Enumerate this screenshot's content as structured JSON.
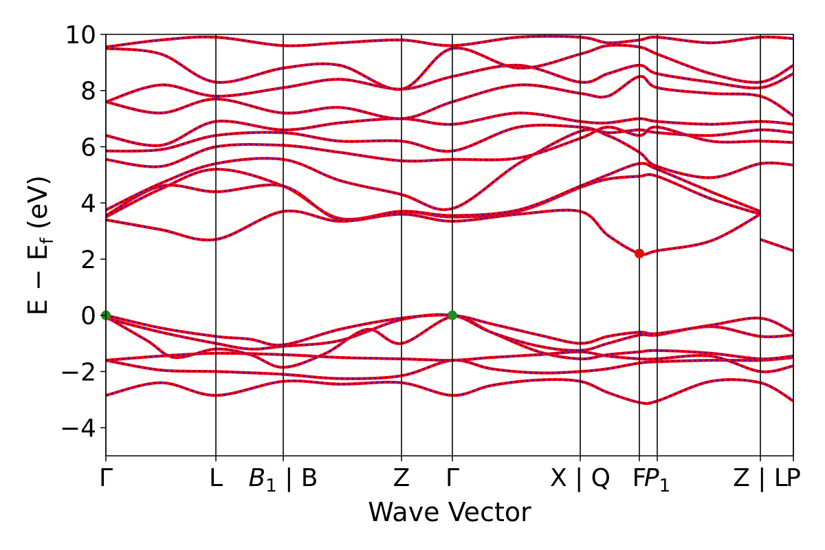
{
  "chart_data": {
    "type": "line",
    "title": "",
    "xlabel": "Wave Vector",
    "ylabel": "E − E_f (eV)",
    "ylabel_parts": {
      "main": "E − E",
      "sub": "f",
      "unit": " (eV)"
    },
    "xlim": [
      0,
      10.0
    ],
    "ylim": [
      -5,
      10
    ],
    "y_ticks": [
      -4,
      -2,
      0,
      2,
      4,
      6,
      8,
      10
    ],
    "y_tick_labels": [
      "−4",
      "−2",
      "0",
      "2",
      "4",
      "6",
      "8",
      "10"
    ],
    "grid": false,
    "legend": "none",
    "kpoints": [
      {
        "x": 0.0,
        "label": "Γ",
        "sub": ""
      },
      {
        "x": 1.6,
        "label": "L",
        "sub": ""
      },
      {
        "x": 2.58,
        "label": "B",
        "sub": "1",
        "italic": true,
        "suffix": " | B"
      },
      {
        "x": 4.3,
        "label": "Z",
        "sub": ""
      },
      {
        "x": 5.04,
        "label": "Γ",
        "sub": ""
      },
      {
        "x": 6.9,
        "label": "X | Q",
        "sub": ""
      },
      {
        "x": 7.76,
        "label": "F",
        "sub": ""
      },
      {
        "x": 8.02,
        "label": "P",
        "sub": "1",
        "italic": true
      },
      {
        "x": 9.52,
        "label": "Z | L",
        "sub": ""
      },
      {
        "x": 10.0,
        "label": "P",
        "sub": ""
      }
    ],
    "markers": [
      {
        "x": 0.0,
        "y": 0.0,
        "color": "#228B22"
      },
      {
        "x": 5.04,
        "y": 0.0,
        "color": "#228B22"
      },
      {
        "x": 7.76,
        "y": 2.2,
        "color": "#e01010"
      }
    ],
    "style": {
      "line_color": "#ff0000",
      "dash_color": "#0000ff",
      "vline_color": "#000000"
    },
    "series": [
      {
        "x": [
          0,
          0.8,
          1.6,
          2.58,
          3.4,
          4.3,
          5.04,
          5.6,
          6.3,
          6.9,
          7.3,
          7.76,
          8.02,
          8.8,
          9.52,
          10.0
        ],
        "y": [
          -2.85,
          -2.4,
          -2.85,
          -2.35,
          -2.45,
          -2.4,
          -2.85,
          -2.5,
          -2.3,
          -2.35,
          -2.75,
          -3.1,
          -3.05,
          -2.35,
          -2.4,
          -3.05
        ]
      },
      {
        "x": [
          0,
          0.8,
          1.6,
          2.58,
          3.4,
          4.3,
          5.04,
          5.6,
          6.3,
          6.9,
          7.3,
          7.76,
          8.02,
          8.8,
          9.52,
          10.0
        ],
        "y": [
          -1.6,
          -1.95,
          -2.0,
          -2.1,
          -2.25,
          -2.15,
          -1.6,
          -1.9,
          -2.05,
          -2.0,
          -1.9,
          -1.7,
          -1.65,
          -1.6,
          -1.6,
          -1.5
        ]
      },
      {
        "x": [
          0,
          0.8,
          1.6,
          2.58,
          3.4,
          4.3,
          5.04,
          5.6,
          6.3,
          6.9,
          7.3,
          7.76,
          8.02,
          8.8,
          9.52,
          10.0
        ],
        "y": [
          -1.6,
          -1.45,
          -1.35,
          -1.4,
          -1.5,
          -1.55,
          -1.6,
          -1.5,
          -1.4,
          -1.3,
          -1.45,
          -1.55,
          -1.55,
          -1.45,
          -2.0,
          -1.8
        ]
      },
      {
        "x": [
          0,
          0.6,
          1.0,
          1.6,
          2.1,
          2.58,
          3.2,
          3.8,
          4.3,
          5.04,
          5.6,
          6.3,
          6.9,
          7.3,
          7.76,
          8.02,
          8.8,
          9.52,
          10.0
        ],
        "y": [
          -0.05,
          -0.9,
          -1.5,
          -1.2,
          -1.4,
          -1.85,
          -1.35,
          -0.5,
          -1.0,
          -0.05,
          -0.6,
          -1.3,
          -1.55,
          -1.4,
          -1.3,
          -1.25,
          -1.35,
          -1.55,
          -1.45
        ]
      },
      {
        "x": [
          0,
          0.8,
          1.6,
          2.1,
          2.58,
          3.4,
          4.3,
          5.04,
          5.6,
          6.3,
          6.9,
          7.3,
          7.76,
          8.02,
          8.8,
          9.52,
          10.0
        ],
        "y": [
          -0.1,
          -0.6,
          -1.0,
          -1.2,
          -1.1,
          -0.9,
          -0.15,
          0.0,
          -0.6,
          -1.1,
          -1.25,
          -1.0,
          -0.7,
          -0.7,
          -0.4,
          -0.75,
          -0.7
        ]
      },
      {
        "x": [
          0,
          0.8,
          1.6,
          2.1,
          2.58,
          3.4,
          4.3,
          5.04,
          5.6,
          6.3,
          6.9,
          7.3,
          7.76,
          8.02,
          8.8,
          9.52,
          10.0
        ],
        "y": [
          0.0,
          -0.45,
          -0.75,
          -0.85,
          -1.05,
          -0.5,
          -0.1,
          0.0,
          -0.3,
          -0.7,
          -1.0,
          -0.75,
          -0.6,
          -0.65,
          -0.35,
          -0.1,
          -0.6
        ]
      },
      {
        "x": [
          9.52,
          10.0
        ],
        "y": [
          2.7,
          2.3
        ]
      },
      {
        "x": [
          0,
          0.8,
          1.6,
          2.58,
          3.4,
          4.3,
          5.04,
          6.0,
          6.9,
          7.3,
          7.76,
          8.02,
          8.8,
          9.52
        ],
        "y": [
          3.4,
          3.05,
          2.7,
          3.7,
          3.35,
          3.6,
          3.35,
          3.6,
          3.7,
          2.85,
          2.2,
          2.3,
          2.65,
          3.6
        ]
      },
      {
        "x": [
          0,
          0.8,
          1.6,
          2.58,
          3.4,
          4.3,
          5.04,
          6.0,
          6.9,
          7.3,
          7.76,
          8.02,
          8.8,
          9.52
        ],
        "y": [
          3.5,
          4.5,
          5.2,
          4.6,
          3.45,
          3.7,
          3.5,
          3.7,
          4.55,
          4.85,
          4.95,
          4.95,
          4.15,
          3.6
        ]
      },
      {
        "x": [
          0,
          0.8,
          1.6,
          2.58,
          3.4,
          4.3,
          5.04,
          6.0,
          6.9,
          7.3,
          7.76,
          8.02,
          8.8,
          9.52
        ],
        "y": [
          3.55,
          4.6,
          4.4,
          4.6,
          3.4,
          3.7,
          3.55,
          3.75,
          4.6,
          5.0,
          5.4,
          5.2,
          4.4,
          3.7
        ]
      },
      {
        "x": [
          0,
          0.8,
          1.6,
          2.58,
          3.4,
          4.3,
          5.04,
          6.0,
          6.9,
          7.3,
          7.76,
          8.02,
          8.8,
          9.52,
          10.0
        ],
        "y": [
          3.75,
          4.7,
          5.4,
          5.55,
          4.8,
          4.3,
          3.8,
          5.4,
          6.55,
          6.4,
          5.8,
          5.3,
          4.9,
          5.4,
          5.35
        ]
      },
      {
        "x": [
          0,
          0.8,
          1.6,
          2.58,
          3.4,
          4.3,
          5.04,
          6.0,
          6.9,
          7.3,
          7.76,
          8.02,
          8.8,
          9.52,
          10.0
        ],
        "y": [
          5.55,
          5.3,
          6.0,
          6.05,
          5.8,
          5.5,
          5.55,
          5.6,
          6.3,
          6.7,
          6.4,
          6.7,
          6.2,
          6.2,
          6.15
        ]
      },
      {
        "x": [
          0,
          0.8,
          1.6,
          2.58,
          3.4,
          4.3,
          5.04,
          6.0,
          6.9,
          7.3,
          7.76,
          8.02,
          8.8,
          9.52,
          10.0
        ],
        "y": [
          5.85,
          5.9,
          6.4,
          6.5,
          6.2,
          6.2,
          5.85,
          6.7,
          6.7,
          6.5,
          6.6,
          6.5,
          6.4,
          6.6,
          6.5
        ]
      },
      {
        "x": [
          0,
          0.8,
          1.6,
          2.58,
          3.4,
          4.3,
          5.04,
          6.0,
          6.9,
          7.3,
          7.76,
          8.02,
          8.8,
          9.52,
          10.0
        ],
        "y": [
          6.4,
          6.05,
          6.9,
          6.6,
          6.85,
          7.0,
          6.8,
          7.2,
          6.9,
          6.85,
          7.0,
          6.9,
          6.8,
          6.9,
          6.8
        ]
      },
      {
        "x": [
          0,
          0.8,
          1.6,
          2.58,
          3.4,
          4.3,
          5.04,
          6.0,
          6.9,
          7.3,
          7.76,
          8.02,
          8.8,
          9.52,
          10.0
        ],
        "y": [
          7.6,
          7.2,
          7.7,
          7.2,
          7.4,
          7.0,
          7.6,
          8.2,
          7.9,
          7.8,
          8.5,
          8.1,
          7.9,
          7.8,
          7.1
        ]
      },
      {
        "x": [
          0,
          0.8,
          1.6,
          2.58,
          3.4,
          4.3,
          5.04,
          6.0,
          6.9,
          7.3,
          7.76,
          8.02,
          8.8,
          9.52,
          10.0
        ],
        "y": [
          7.6,
          8.2,
          7.8,
          8.1,
          8.4,
          8.05,
          8.5,
          8.9,
          8.3,
          8.6,
          8.9,
          8.6,
          8.3,
          8.1,
          8.6
        ]
      },
      {
        "x": [
          0,
          0.8,
          1.6,
          2.58,
          3.4,
          4.3,
          5.04,
          6.0,
          6.9,
          7.3,
          7.76,
          8.02,
          8.8,
          9.52,
          10.0
        ],
        "y": [
          9.5,
          9.3,
          8.3,
          8.8,
          8.9,
          8.05,
          9.5,
          8.8,
          9.3,
          9.6,
          9.55,
          9.3,
          8.6,
          8.3,
          8.9
        ]
      },
      {
        "x": [
          0,
          0.8,
          1.6,
          2.58,
          3.4,
          4.3,
          5.04,
          6.0,
          6.9,
          7.3,
          7.76,
          8.02,
          8.8,
          9.52,
          10.0
        ],
        "y": [
          9.55,
          9.8,
          9.9,
          9.6,
          9.7,
          9.8,
          9.6,
          9.9,
          9.9,
          9.7,
          9.8,
          9.9,
          9.7,
          9.9,
          9.85
        ]
      }
    ]
  }
}
